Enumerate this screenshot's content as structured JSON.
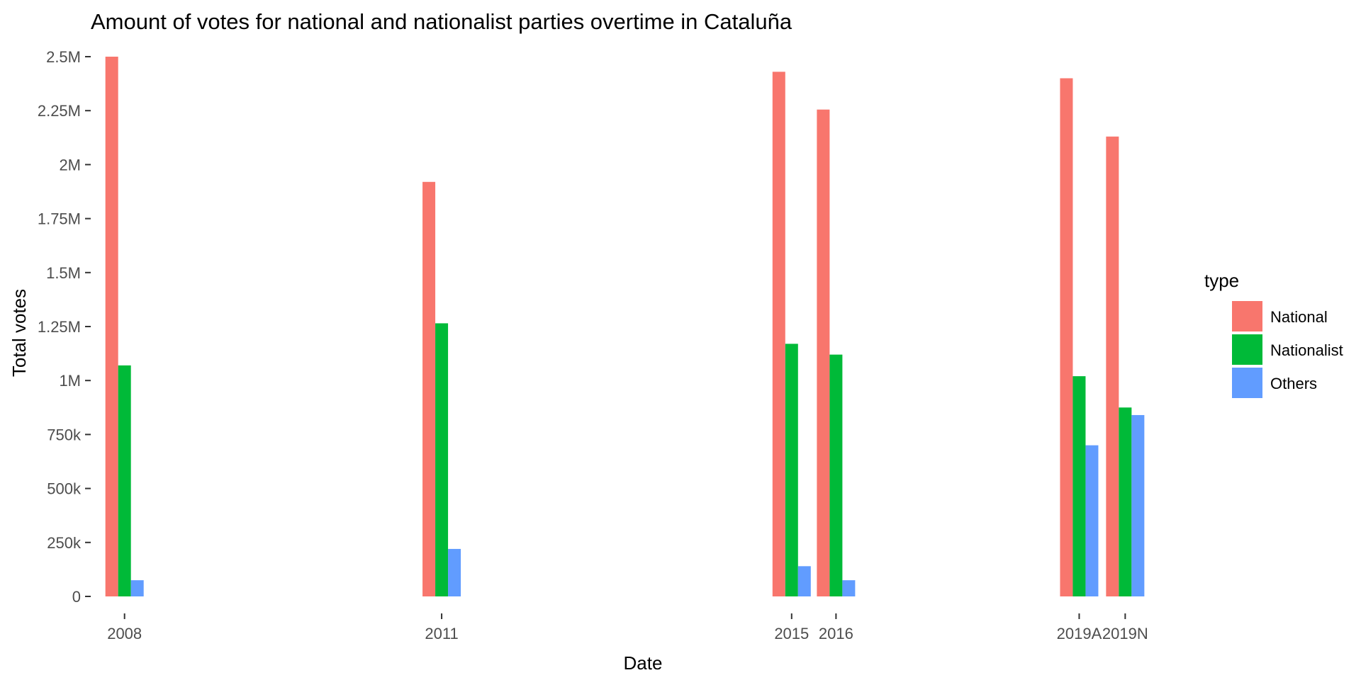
{
  "chart_data": {
    "type": "bar",
    "title": "Amount of votes for national and nationalist parties overtime in Cataluña",
    "xlabel": "Date",
    "ylabel": "Total votes",
    "ylim": [
      0,
      2500000
    ],
    "y_ticks": [
      {
        "value": 0,
        "label": "0"
      },
      {
        "value": 250000,
        "label": "250k"
      },
      {
        "value": 500000,
        "label": "500k"
      },
      {
        "value": 750000,
        "label": "750k"
      },
      {
        "value": 1000000,
        "label": "1M"
      },
      {
        "value": 1250000,
        "label": "1.25M"
      },
      {
        "value": 1500000,
        "label": "1.5M"
      },
      {
        "value": 1750000,
        "label": "1.75M"
      },
      {
        "value": 2000000,
        "label": "2M"
      },
      {
        "value": 2250000,
        "label": "2.25M"
      },
      {
        "value": 2500000,
        "label": "2.5M"
      }
    ],
    "categories": [
      "2008",
      "2011",
      "2015",
      "2016",
      "2019A",
      "2019N"
    ],
    "category_dates": [
      "2008-03-09",
      "2011-11-20",
      "2015-12-20",
      "2016-06-26",
      "2019-04-28",
      "2019-11-10"
    ],
    "x_range": [
      "2007-10-17",
      "2020-09-15"
    ],
    "legend": {
      "title": "type",
      "position": "right",
      "entries": [
        {
          "label": "National",
          "color": "#F8766D"
        },
        {
          "label": "Nationalist",
          "color": "#00BA38"
        },
        {
          "label": "Others",
          "color": "#619CFF"
        }
      ]
    },
    "series": [
      {
        "name": "National",
        "color": "#F8766D",
        "values": [
          2500000,
          1920000,
          2430000,
          2255000,
          2400000,
          2130000
        ]
      },
      {
        "name": "Nationalist",
        "color": "#00BA38",
        "values": [
          1070000,
          1265000,
          1170000,
          1120000,
          1020000,
          875000
        ]
      },
      {
        "name": "Others",
        "color": "#619CFF",
        "values": [
          75000,
          220000,
          140000,
          75000,
          700000,
          840000
        ]
      }
    ],
    "grid": false
  }
}
